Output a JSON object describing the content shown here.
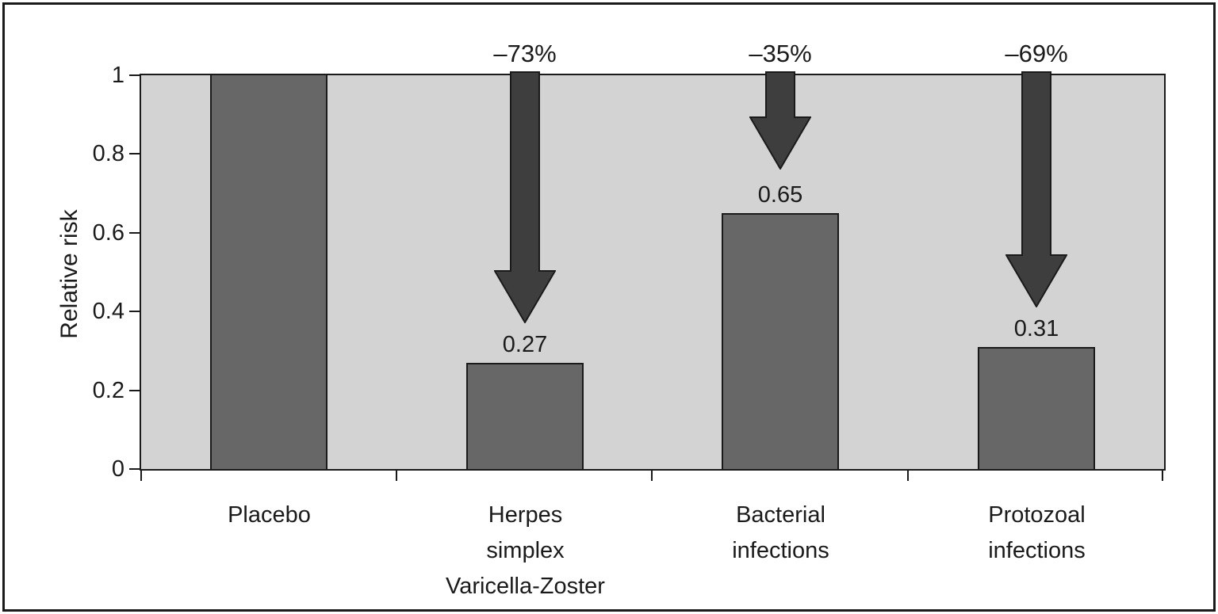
{
  "chart_data": {
    "type": "bar",
    "title": "",
    "ylabel": "Relative risk",
    "xlabel": "",
    "ylim": [
      0,
      1
    ],
    "yticks": [
      0,
      0.2,
      0.4,
      0.6,
      0.8,
      1
    ],
    "ytick_labels": [
      "0",
      "0.2",
      "0.4",
      "0.6",
      "0.8",
      "1"
    ],
    "categories": [
      "Placebo",
      "Herpes\nsimplex\nVaricella-Zoster",
      "Bacterial\ninfections",
      "Protozoal\ninfections"
    ],
    "values": [
      1,
      0.27,
      0.65,
      0.31
    ],
    "bar_value_labels": [
      "",
      "0.27",
      "0.65",
      "0.31"
    ],
    "annotations": [
      {
        "category_index": 1,
        "label": "–73%",
        "arrow_tip_value": 0.37
      },
      {
        "category_index": 2,
        "label": "–35%",
        "arrow_tip_value": 0.76
      },
      {
        "category_index": 3,
        "label": "–69%",
        "arrow_tip_value": 0.41
      }
    ],
    "grid": false,
    "legend_position": "none",
    "colors": {
      "plot_background": "#d3d3d3",
      "bar_fill": "#676767",
      "arrow_fill": "#3e3e3e",
      "line": "#1a1a1a",
      "text": "#1a1a1a",
      "figure_background": "#ffffff"
    }
  }
}
